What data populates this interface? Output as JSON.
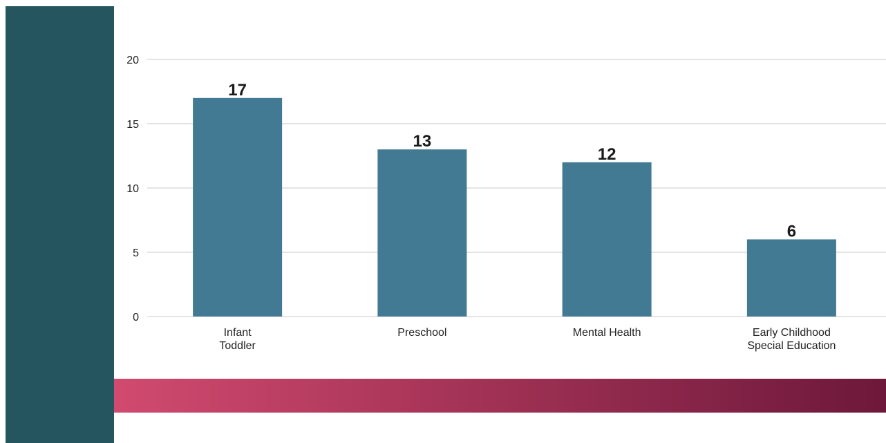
{
  "colors": {
    "side_panel": "#255660",
    "bar": "#427a93",
    "gridline": "#c8c8c8",
    "gradient_start": "#d14a6f",
    "gradient_end": "#6d183a"
  },
  "chart_data": {
    "type": "bar",
    "title": "",
    "xlabel": "",
    "ylabel": "",
    "categories": [
      [
        "Infant",
        "Toddler"
      ],
      [
        "Preschool"
      ],
      [
        "Mental Health"
      ],
      [
        "Early Childhood",
        "Special Education"
      ]
    ],
    "values": [
      17,
      13,
      12,
      6
    ],
    "data_labels": [
      "17",
      "13",
      "12",
      "6"
    ],
    "ylim": [
      0,
      20
    ],
    "yticks": [
      0,
      5,
      10,
      15,
      20
    ],
    "grid": true,
    "legend": "none"
  }
}
